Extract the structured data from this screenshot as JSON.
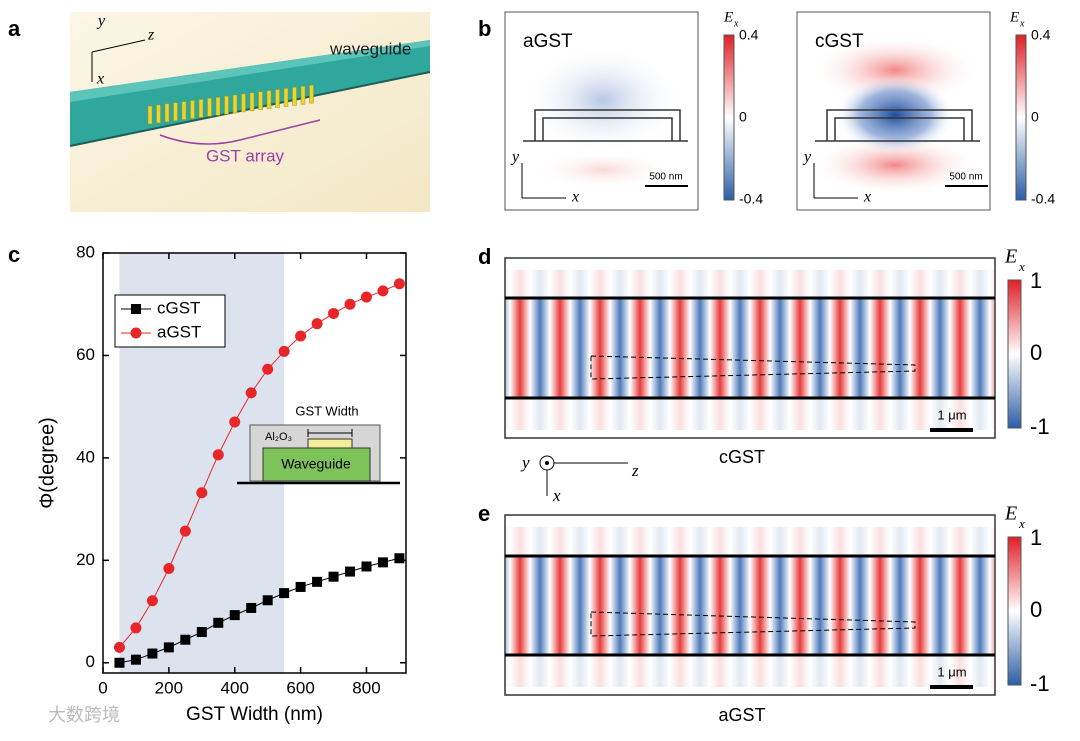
{
  "panels": {
    "a": {
      "label": "a",
      "axes": [
        "y",
        "z",
        "x"
      ],
      "waveguide": "waveguide",
      "array": "GST array"
    },
    "b": {
      "label": "b",
      "maps": [
        {
          "name": "aGST",
          "scale": "500 nm",
          "axes": [
            "y",
            "x"
          ],
          "colorbar": {
            "symbol": "E",
            "subscript": "x",
            "ticks": [
              "0.4",
              "0",
              "-0.4"
            ]
          }
        },
        {
          "name": "cGST",
          "scale": "500 nm",
          "axes": [
            "y",
            "x"
          ],
          "colorbar": {
            "symbol": "E",
            "subscript": "x",
            "ticks": [
              "0.4",
              "0",
              "-0.4"
            ]
          }
        }
      ]
    },
    "c": {
      "label": "c",
      "inset": {
        "width": "GST Width",
        "layer": "Al₂O₃",
        "core": "Waveguide"
      }
    },
    "d": {
      "label": "d",
      "caption": "cGST",
      "scale": "1 μm",
      "colorbar": {
        "symbol": "E",
        "subscript": "x",
        "ticks": [
          "1",
          "0",
          "-1"
        ]
      }
    },
    "coords": [
      "y",
      "z",
      "x"
    ],
    "e": {
      "label": "e",
      "caption": "aGST",
      "scale": "1 μm",
      "colorbar": {
        "symbol": "E",
        "subscript": "x",
        "ticks": [
          "1",
          "0",
          "-1"
        ]
      }
    }
  },
  "watermark": "大数跨境",
  "chart_data": {
    "type": "line",
    "xlabel": "GST Width (nm)",
    "ylabel": "Φ(degree)",
    "x": [
      50,
      100,
      150,
      200,
      250,
      300,
      350,
      400,
      450,
      500,
      550,
      600,
      650,
      700,
      750,
      800,
      850,
      900
    ],
    "series": [
      {
        "name": "cGST",
        "color": "#000000",
        "marker": "square",
        "values": [
          0,
          0.6,
          1.8,
          3,
          4.5,
          6,
          7.8,
          9.3,
          10.7,
          12.2,
          13.6,
          14.8,
          15.8,
          16.8,
          17.8,
          18.8,
          19.6,
          20.4
        ]
      },
      {
        "name": "aGST",
        "color": "#e8262a",
        "marker": "circle",
        "values": [
          3,
          6.8,
          12.1,
          18.4,
          25.7,
          33.2,
          40.6,
          47,
          52.7,
          57.3,
          60.8,
          63.8,
          66.2,
          68.2,
          70,
          71.4,
          72.6,
          74
        ]
      }
    ],
    "xlim": [
      0,
      920
    ],
    "xticks": [
      0,
      200,
      400,
      600,
      800
    ],
    "ylim": [
      -2,
      80
    ],
    "yticks": [
      0,
      20,
      40,
      60,
      80
    ],
    "shaded_range": [
      50,
      550
    ],
    "shade_color": "#dde3ee",
    "legend": "upper left"
  }
}
